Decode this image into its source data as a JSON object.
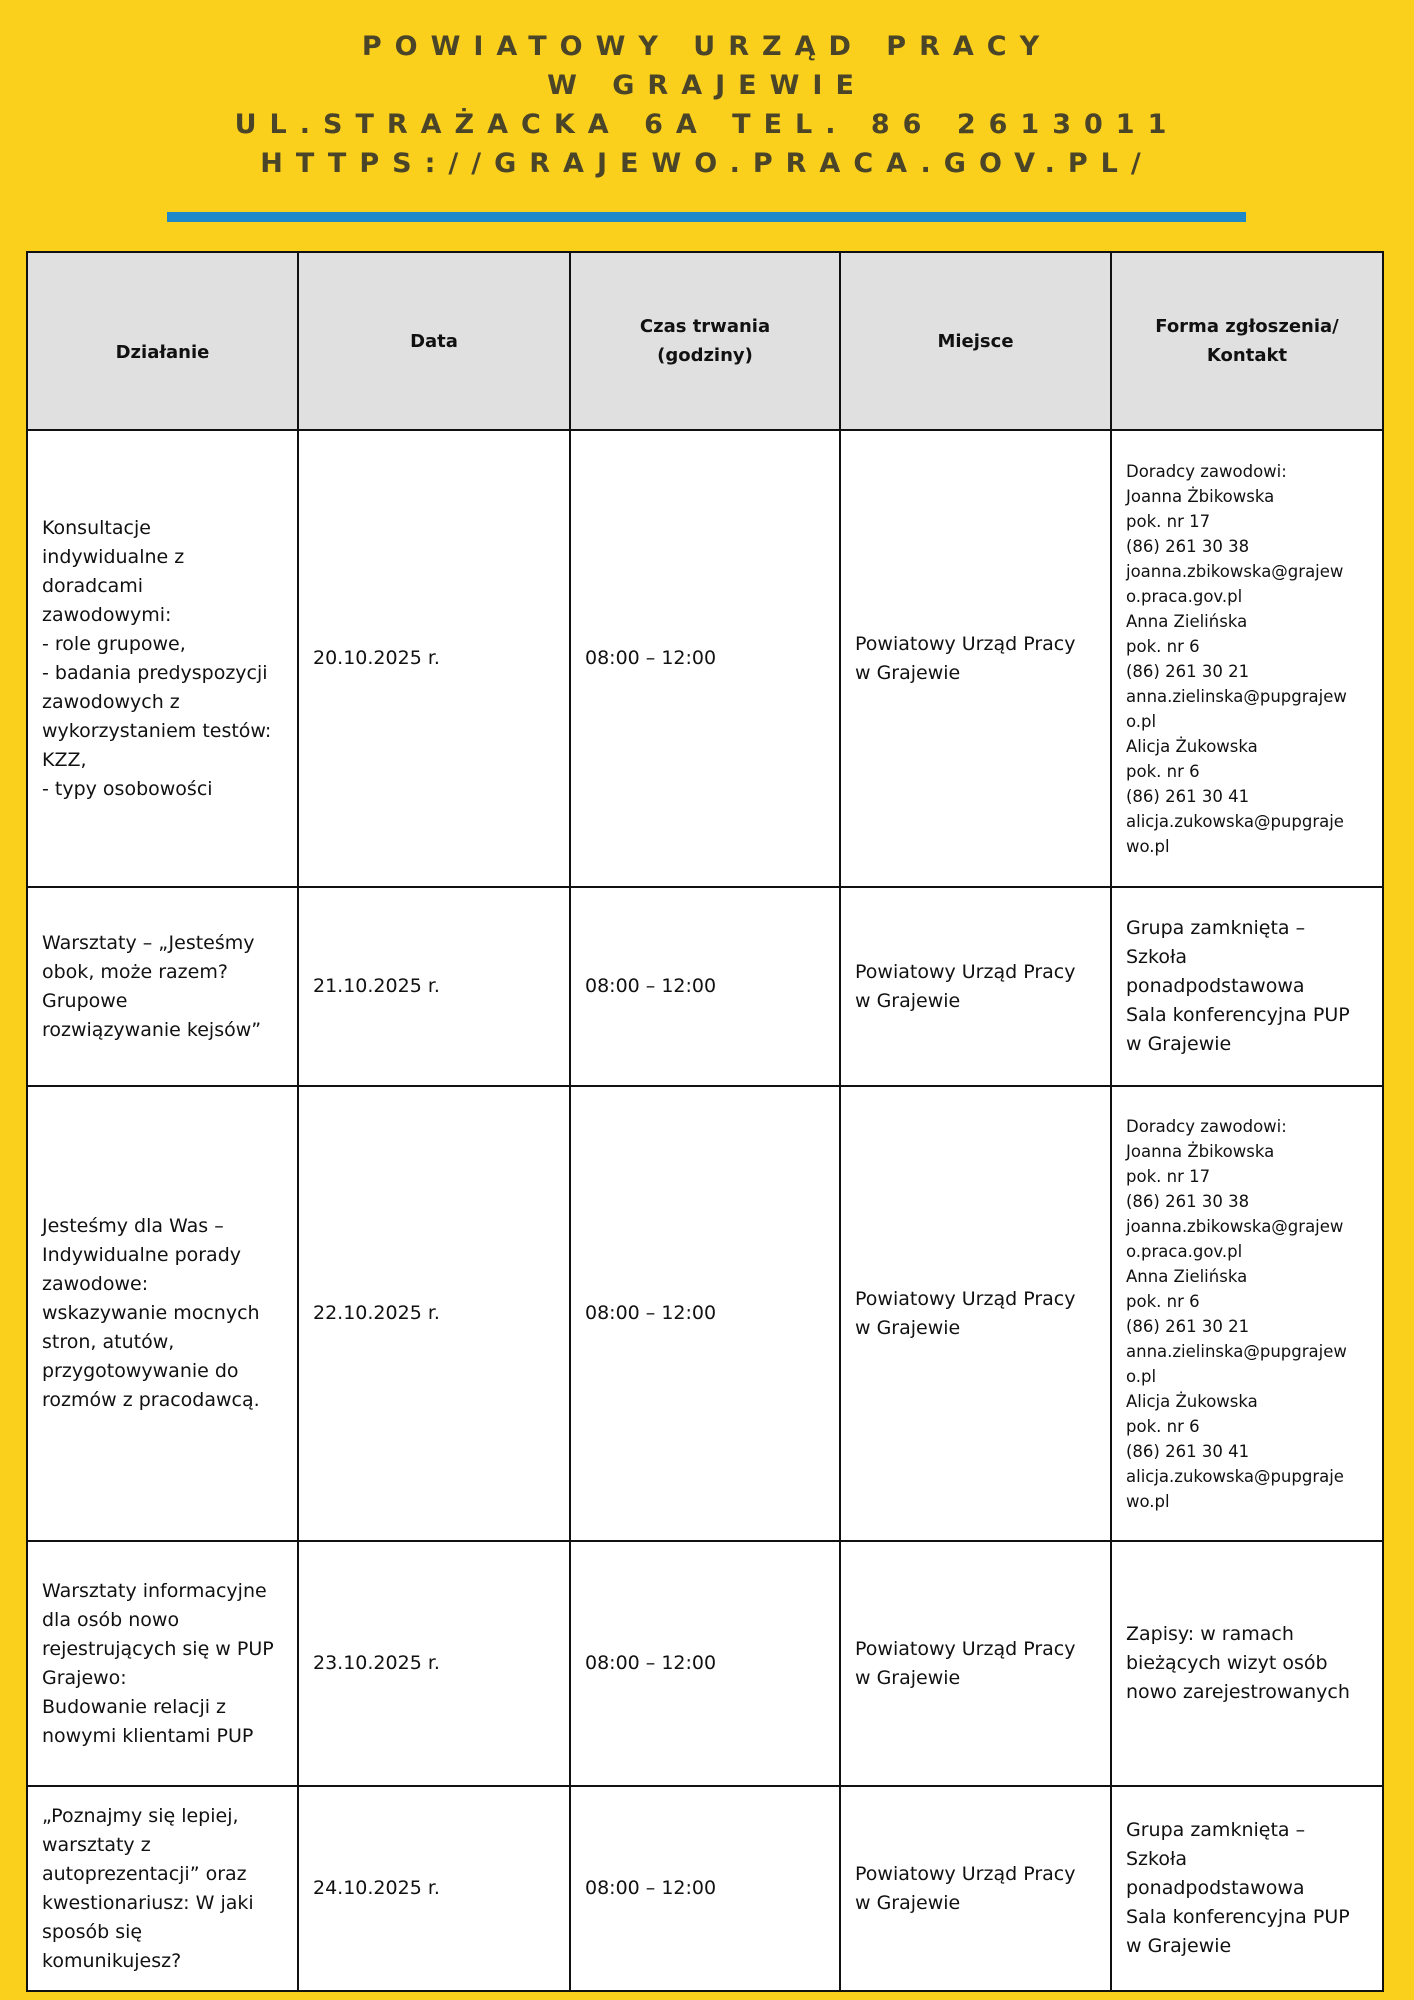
{
  "header": {
    "lines": [
      "POWIATOWY URZĄD PRACY",
      "W GRAJEWIE",
      "UL.STRAŻACKA 6A TEL. 86 2613011",
      "HTTPS://GRAJEWO.PRACA.GOV.PL/"
    ],
    "accent_color": "#1e88c8",
    "background_color": "#fbd01c"
  },
  "table": {
    "headers": [
      "Działanie",
      "Data",
      "Czas trwania\n(godziny)",
      "Miejsce",
      "Forma zgłoszenia/\nKontakt"
    ],
    "rows": [
      [
        "Konsultacje\nindywidualne z\ndoradcami\nzawodowymi:\n- role grupowe,\n- badania predyspozycji\nzawodowych z\nwykorzystaniem testów:\nKZZ,\n - typy osobowości",
        "20.10.2025 r.",
        "08:00 – 12:00",
        "Powiatowy Urząd Pracy\n w Grajewie",
        "Doradcy zawodowi:\nJoanna Żbikowska\npok. nr 17\n(86) 261 30 38\njoanna.zbikowska@grajew\no.praca.gov.pl\nAnna Zielińska\npok. nr 6\n(86) 261 30 21\nanna.zielinska@pupgrajew\no.pl\nAlicja Żukowska\npok. nr 6\n(86) 261 30 41\nalicja.zukowska@pupgraje\nwo.pl"
      ],
      [
        "Warsztaty – „Jesteśmy\nobok, może razem?\nGrupowe\nrozwiązywanie kejsów”",
        "21.10.2025 r.",
        "08:00 – 12:00",
        "Powiatowy Urząd Pracy\n w Grajewie",
        "Grupa zamknięta –\nSzkoła\nponadpodstawowa\nSala konferencyjna PUP\nw Grajewie"
      ],
      [
        "Jesteśmy dla Was –\nIndywidualne porady\nzawodowe:\nwskazywanie mocnych\nstron, atutów,\nprzygotowywanie do\nrozmów z pracodawcą.",
        "22.10.2025 r.",
        "08:00 – 12:00",
        "Powiatowy Urząd Pracy\n w Grajewie",
        "Doradcy zawodowi:\nJoanna Żbikowska\npok. nr 17\n(86) 261 30 38\njoanna.zbikowska@grajew\no.praca.gov.pl\nAnna Zielińska\npok. nr 6\n(86) 261 30 21\nanna.zielinska@pupgrajew\no.pl\nAlicja Żukowska\npok. nr 6\n(86) 261 30 41\nalicja.zukowska@pupgraje\nwo.pl"
      ],
      [
        "Warsztaty informacyjne\ndla osób nowo\nrejestrujących się w PUP\nGrajewo:\nBudowanie relacji z\nnowymi klientami PUP",
        "23.10.2025 r.",
        "08:00 – 12:00",
        "Powiatowy Urząd Pracy\n w Grajewie",
        "Zapisy: w ramach\nbieżących wizyt osób\nnowo zarejestrowanych"
      ],
      [
        " „Poznajmy się lepiej,\nwarsztaty z\nautoprezentacji” oraz\nkwestionariusz: W jaki\nsposób się\nkomunikujesz?",
        "24.10.2025 r.",
        "08:00 – 12:00",
        "Powiatowy Urząd Pracy\n w Grajewie",
        "Grupa zamknięta –\nSzkoła\nponadpodstawowa\nSala konferencyjna PUP\nw Grajewie"
      ]
    ]
  }
}
